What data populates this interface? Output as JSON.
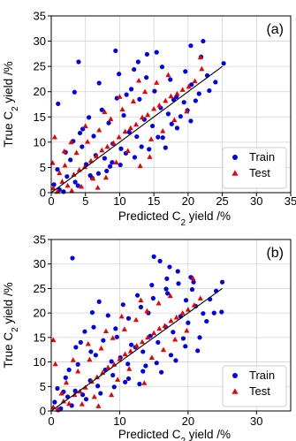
{
  "chart_data": [
    {
      "type": "scatter",
      "panel_label": "(a)",
      "xlabel": "Predicted C2 yield /%",
      "ylabel": "True C2 yield /%",
      "xlim": [
        0,
        35
      ],
      "ylim": [
        0,
        35
      ],
      "xticks": [
        0,
        5,
        10,
        15,
        20,
        25,
        30,
        35
      ],
      "yticks": [
        0,
        5,
        10,
        15,
        20,
        25,
        30,
        35
      ],
      "grid": true,
      "legend_position": "bottom-right",
      "parity_line": {
        "x": [
          0,
          25
        ],
        "y": [
          0,
          25
        ],
        "color": "#000000"
      },
      "series": [
        {
          "name": "Train",
          "marker": "circle",
          "color": "#0000ee",
          "x": [
            0.4,
            1.2,
            2.3,
            3.5,
            5.1,
            6.5,
            7.8,
            9.0,
            10.2,
            11.4,
            12.5,
            13.6,
            14.8,
            16.0,
            17.1,
            18.3,
            19.4,
            20.5,
            21.6,
            22.8,
            24.0,
            25.2,
            2.8,
            4.5,
            6.2,
            8.4,
            10.6,
            12.9,
            15.1,
            17.4,
            19.6,
            21.9,
            1.8,
            3.9,
            6.0,
            8.1,
            10.1,
            12.2,
            14.3,
            16.3,
            18.4,
            20.4,
            5.5,
            7.4,
            9.6,
            11.7,
            13.9,
            16.2,
            4.0,
            14.0,
            1.0,
            9.4,
            11.0,
            12.1,
            20.4,
            22.2,
            5.7,
            8.6,
            13.2,
            15.6,
            17.6,
            18.9,
            19.9,
            21.1,
            23.1,
            0.9,
            2.1,
            3.2,
            4.6,
            6.9,
            8.9,
            10.9,
            16.7,
            7.0,
            9.9,
            12.7,
            15.4,
            17.9,
            3.4,
            4.2
          ],
          "y": [
            1.6,
            0.6,
            3.2,
            2.1,
            5.6,
            7.4,
            6.8,
            9.7,
            8.7,
            12.0,
            11.1,
            14.5,
            13.2,
            16.8,
            15.6,
            19.0,
            17.9,
            21.4,
            19.6,
            23.2,
            21.9,
            25.6,
            6.5,
            9.1,
            11.2,
            13.8,
            15.3,
            18.5,
            20.1,
            22.4,
            24.0,
            26.9,
            0.2,
            1.4,
            2.9,
            4.3,
            5.5,
            7.0,
            8.6,
            10.9,
            12.8,
            14.2,
            14.9,
            16.4,
            18.7,
            20.5,
            22.8,
            24.9,
            25.9,
            27.4,
            17.6,
            28.1,
            19.4,
            24.4,
            29.1,
            30.0,
            3.4,
            5.2,
            9.1,
            11.0,
            13.6,
            15.1,
            16.3,
            18.2,
            20.2,
            4.6,
            8.0,
            10.2,
            12.6,
            3.8,
            6.0,
            7.8,
            8.9,
            21.7,
            23.5,
            25.9,
            27.8,
            18.4,
            19.9,
            11.8
          ]
        },
        {
          "name": "Test",
          "marker": "triangle",
          "color": "#ee0000",
          "x": [
            0.3,
            0.9,
            1.6,
            2.4,
            3.3,
            4.1,
            4.9,
            5.8,
            6.6,
            7.4,
            8.2,
            9.1,
            9.9,
            10.8,
            11.6,
            12.4,
            13.3,
            14.1,
            15.0,
            15.8,
            16.7,
            17.5,
            18.4,
            19.2,
            20.1,
            21.0,
            22.0,
            2.0,
            3.7,
            5.3,
            7.0,
            8.7,
            10.4,
            12.0,
            13.7,
            15.4,
            17.1,
            1.2,
            4.4,
            6.1,
            9.5,
            11.2,
            14.6,
            16.3,
            18.0,
            19.8,
            2.9,
            5.0,
            7.8,
            10.0,
            12.8,
            0.5,
            3.0,
            6.8,
            8.0,
            13.0,
            14.4,
            21.8,
            0.2,
            1.9
          ],
          "y": [
            0.9,
            0.2,
            2.2,
            1.4,
            3.6,
            4.5,
            5.1,
            6.3,
            7.2,
            8.4,
            9.1,
            9.8,
            11.0,
            12.1,
            12.8,
            13.5,
            14.9,
            15.4,
            16.6,
            17.3,
            18.2,
            19.1,
            19.6,
            20.4,
            21.0,
            22.1,
            24.5,
            5.4,
            7.9,
            10.1,
            12.4,
            14.6,
            16.5,
            18.1,
            20.0,
            21.8,
            23.3,
            3.9,
            1.2,
            2.8,
            6.0,
            8.3,
            10.6,
            12.2,
            14.4,
            16.1,
            10.0,
            13.2,
            16.0,
            19.0,
            22.2,
            11.0,
            0.4,
            1.0,
            3.0,
            5.3,
            7.1,
            26.8,
            5.9,
            8.2
          ]
        }
      ]
    },
    {
      "type": "scatter",
      "panel_label": "(b)",
      "xlabel": "Predicted C2 yield /%",
      "ylabel": "True C2 yield /%",
      "xlim": [
        0,
        35
      ],
      "ylim": [
        0,
        35
      ],
      "xticks": [
        0,
        10,
        20,
        30
      ],
      "yticks": [
        0,
        5,
        10,
        15,
        20,
        25,
        30,
        35
      ],
      "grid": true,
      "legend_position": "bottom-right",
      "parity_line": {
        "x": [
          0,
          25
        ],
        "y": [
          0,
          25
        ],
        "color": "#000000"
      },
      "series": [
        {
          "name": "Train",
          "marker": "circle",
          "color": "#0000ee",
          "x": [
            0.5,
            1.4,
            2.4,
            3.5,
            4.6,
            5.7,
            6.8,
            7.9,
            9.0,
            10.1,
            11.2,
            12.3,
            13.4,
            14.5,
            15.6,
            16.7,
            17.8,
            18.9,
            20.0,
            21.1,
            22.2,
            23.2,
            24.1,
            25.0,
            2.1,
            3.9,
            5.8,
            7.6,
            9.4,
            11.3,
            13.1,
            14.9,
            16.8,
            18.6,
            20.4,
            1.0,
            3.0,
            5.1,
            7.2,
            9.2,
            11.3,
            13.4,
            15.4,
            17.5,
            19.6,
            21.7,
            4.3,
            6.2,
            8.3,
            10.5,
            12.6,
            14.7,
            16.9,
            18.5,
            19.7,
            3.1,
            8.8,
            11.7,
            14.2,
            15.9,
            17.3,
            20.6,
            22.7,
            24.9,
            0.9,
            2.6,
            6.5,
            9.6,
            12.9,
            16.1,
            18.2,
            19.3,
            21.4,
            15.0,
            6.0,
            10.8,
            13.8,
            3.6,
            7.0,
            1.8,
            4.9,
            17.0,
            20.8,
            23.8
          ],
          "y": [
            1.8,
            0.5,
            2.9,
            4.1,
            3.3,
            6.2,
            5.1,
            8.4,
            7.3,
            10.9,
            9.6,
            13.0,
            12.1,
            15.3,
            14.0,
            17.2,
            16.1,
            19.3,
            18.0,
            21.4,
            19.9,
            22.8,
            24.5,
            26.3,
            6.8,
            9.5,
            12.1,
            14.4,
            16.8,
            18.9,
            21.2,
            23.0,
            24.9,
            26.0,
            27.3,
            0.2,
            1.1,
            2.4,
            3.6,
            4.9,
            6.6,
            8.1,
            9.8,
            11.4,
            13.2,
            15.0,
            14.0,
            17.1,
            19.5,
            21.7,
            23.6,
            25.7,
            27.0,
            28.5,
            22.6,
            31.2,
            10.1,
            13.5,
            20.0,
            30.6,
            29.4,
            24.8,
            18.3,
            20.2,
            4.6,
            8.4,
            11.4,
            15.1,
            5.5,
            7.9,
            10.3,
            14.8,
            12.3,
            31.5,
            20.1,
            5.9,
            9.2,
            13.0,
            22.3,
            3.9,
            16.2,
            24.0,
            26.3,
            20.0
          ]
        },
        {
          "name": "Test",
          "marker": "triangle",
          "color": "#ee0000",
          "x": [
            0.3,
            1.0,
            1.8,
            2.6,
            3.4,
            4.2,
            5.0,
            5.9,
            6.7,
            7.5,
            8.3,
            9.2,
            10.0,
            10.8,
            11.6,
            12.5,
            13.3,
            14.1,
            15.0,
            15.8,
            16.6,
            17.5,
            18.3,
            19.2,
            20.0,
            20.9,
            21.8,
            2.2,
            3.9,
            5.6,
            7.3,
            9.0,
            10.7,
            12.4,
            14.0,
            15.7,
            17.4,
            1.5,
            4.5,
            6.3,
            9.7,
            11.4,
            14.7,
            16.4,
            18.1,
            19.8,
            3.2,
            5.4,
            8.0,
            10.3,
            13.1,
            0.6,
            6.9,
            8.8,
            13.6,
            20.7,
            0.3
          ],
          "y": [
            0.8,
            0.3,
            2.0,
            1.5,
            3.3,
            4.0,
            4.8,
            6.0,
            6.9,
            7.8,
            8.9,
            9.5,
            10.6,
            11.6,
            12.2,
            13.3,
            14.1,
            15.0,
            15.9,
            16.8,
            17.4,
            18.4,
            19.1,
            20.0,
            20.7,
            21.6,
            23.0,
            5.8,
            8.1,
            10.5,
            12.8,
            14.9,
            16.7,
            18.6,
            20.4,
            22.0,
            23.5,
            3.6,
            1.4,
            2.9,
            6.4,
            8.6,
            10.9,
            12.5,
            14.6,
            16.4,
            10.4,
            13.7,
            16.3,
            19.3,
            22.6,
            9.6,
            1.0,
            3.3,
            5.7,
            27.1,
            14.5
          ]
        }
      ]
    }
  ]
}
